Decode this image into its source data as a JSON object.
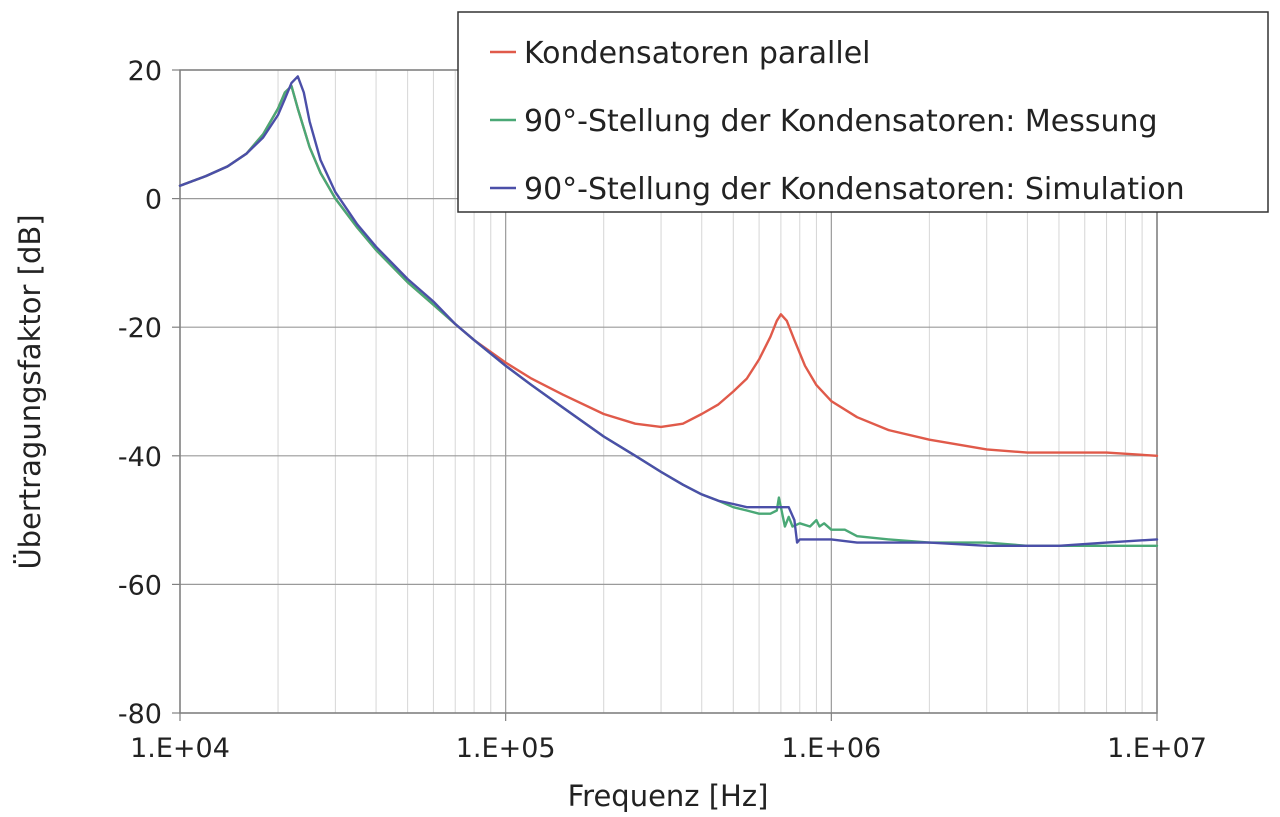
{
  "chart_data": {
    "type": "line",
    "title": "",
    "xlabel": "Frequenz [Hz]",
    "ylabel": "Übertragungsfaktor [dB]",
    "x_scale": "log",
    "xlim": [
      10000,
      10000000
    ],
    "ylim": [
      -80,
      20
    ],
    "x_ticks": [
      {
        "value": 10000,
        "label": "1.E+04"
      },
      {
        "value": 100000,
        "label": "1.E+05"
      },
      {
        "value": 1000000,
        "label": "1.E+06"
      },
      {
        "value": 10000000,
        "label": "1.E+07"
      }
    ],
    "y_ticks": [
      {
        "value": 20,
        "label": "20"
      },
      {
        "value": 0,
        "label": "0"
      },
      {
        "value": -20,
        "label": "-20"
      },
      {
        "value": -40,
        "label": "-40"
      },
      {
        "value": -60,
        "label": "-60"
      },
      {
        "value": -80,
        "label": "-80"
      }
    ],
    "grid": true,
    "legend_position": "top-right",
    "series": [
      {
        "name": "Kondensatoren parallel",
        "color": "#e05a4a",
        "x": [
          10000,
          12000,
          14000,
          16000,
          18000,
          20000,
          21000,
          22000,
          23000,
          25000,
          27000,
          30000,
          35000,
          40000,
          50000,
          60000,
          70000,
          80000,
          100000,
          120000,
          150000,
          200000,
          250000,
          300000,
          350000,
          400000,
          450000,
          500000,
          550000,
          600000,
          650000,
          680000,
          700000,
          730000,
          770000,
          830000,
          900000,
          1000000,
          1200000,
          1500000,
          2000000,
          3000000,
          4000000,
          5000000,
          7000000,
          10000000
        ],
        "y": [
          2,
          3.5,
          5,
          7,
          10,
          14,
          16.5,
          17.5,
          14,
          8,
          4,
          0,
          -4.5,
          -8,
          -13,
          -16.5,
          -19.5,
          -22,
          -25.5,
          -28,
          -30.5,
          -33.5,
          -35,
          -35.5,
          -35,
          -33.5,
          -32,
          -30,
          -28,
          -25,
          -21.5,
          -19,
          -18,
          -19,
          -22,
          -26,
          -29,
          -31.5,
          -34,
          -36,
          -37.5,
          -39,
          -39.5,
          -39.5,
          -39.5,
          -40
        ]
      },
      {
        "name": "90°-Stellung der Kondensatoren: Messung",
        "color": "#4aa876",
        "x": [
          10000,
          12000,
          14000,
          16000,
          18000,
          20000,
          21000,
          22000,
          23000,
          25000,
          27000,
          30000,
          35000,
          40000,
          50000,
          60000,
          70000,
          80000,
          100000,
          120000,
          150000,
          200000,
          250000,
          300000,
          350000,
          400000,
          450000,
          500000,
          550000,
          600000,
          650000,
          680000,
          690000,
          700000,
          720000,
          740000,
          760000,
          800000,
          860000,
          900000,
          920000,
          950000,
          1000000,
          1100000,
          1200000,
          1500000,
          2000000,
          3000000,
          4000000,
          5000000,
          7000000,
          10000000
        ],
        "y": [
          2,
          3.5,
          5,
          7,
          10,
          14,
          16.5,
          17.5,
          14,
          8,
          4,
          0,
          -4.5,
          -8,
          -13,
          -16.5,
          -19.5,
          -22,
          -26,
          -29,
          -32.5,
          -37,
          -40,
          -42.5,
          -44.5,
          -46,
          -47,
          -48,
          -48.5,
          -49,
          -49,
          -48.5,
          -46.5,
          -48,
          -51,
          -49.5,
          -51,
          -50.5,
          -51,
          -50,
          -51,
          -50.5,
          -51.5,
          -51.5,
          -52.5,
          -53,
          -53.5,
          -53.5,
          -54,
          -54,
          -54,
          -54
        ]
      },
      {
        "name": "90°-Stellung der Kondensatoren: Simulation",
        "color": "#4b4fa8",
        "x": [
          10000,
          12000,
          14000,
          16000,
          18000,
          20000,
          21000,
          22000,
          23000,
          24000,
          25000,
          27000,
          30000,
          35000,
          40000,
          50000,
          60000,
          70000,
          80000,
          100000,
          120000,
          150000,
          200000,
          250000,
          300000,
          350000,
          400000,
          450000,
          500000,
          550000,
          600000,
          650000,
          700000,
          740000,
          770000,
          785000,
          800000,
          900000,
          1000000,
          1200000,
          1500000,
          2000000,
          3000000,
          4000000,
          5000000,
          7000000,
          10000000
        ],
        "y": [
          2,
          3.5,
          5,
          7,
          9.5,
          13,
          15.5,
          18,
          19,
          16.5,
          12,
          6,
          1,
          -4,
          -7.5,
          -12.5,
          -16,
          -19.5,
          -22,
          -26,
          -29,
          -32.5,
          -37,
          -40,
          -42.5,
          -44.5,
          -46,
          -47,
          -47.5,
          -48,
          -48,
          -48,
          -48,
          -48,
          -50,
          -53.5,
          -53,
          -53,
          -53,
          -53.5,
          -53.5,
          -53.5,
          -54,
          -54,
          -54,
          -53.5,
          -53
        ]
      }
    ]
  }
}
